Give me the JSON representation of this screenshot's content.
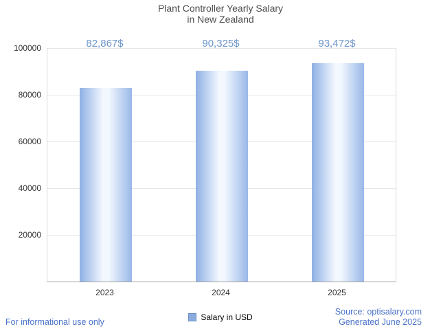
{
  "title": {
    "lines": [
      "Plant Controller Yearly Salary",
      "in New Zealand"
    ]
  },
  "chart_data": {
    "type": "bar",
    "categories": [
      "2023",
      "2024",
      "2025"
    ],
    "values": [
      82867,
      90325,
      93472
    ],
    "value_labels": [
      "82,867$",
      "90,325$",
      "93,472$"
    ],
    "title": "Plant Controller Yearly Salary in New Zealand",
    "xlabel": "",
    "ylabel": "",
    "ylim": [
      0,
      100000
    ],
    "yticks": [
      20000,
      40000,
      60000,
      80000,
      100000
    ],
    "ytick_labels": [
      "20000",
      "40000",
      "60000",
      "80000",
      "100000"
    ],
    "grid": true,
    "legend_position": "bottom",
    "series_name": "Salary in USD"
  },
  "legend": {
    "label": "Salary in USD"
  },
  "footer": {
    "disclaimer": "For informational use only",
    "source": "Source: optisalary.com",
    "generated": "Generated June 2025"
  },
  "colors": {
    "bar_edge": "#8fb0e4",
    "bar_center": "#f3f8ff",
    "value_label": "#6d95ca",
    "link_blue": "#4a72c8",
    "title_gray": "#4d4d4d",
    "gridline": "#e6e6e6"
  }
}
